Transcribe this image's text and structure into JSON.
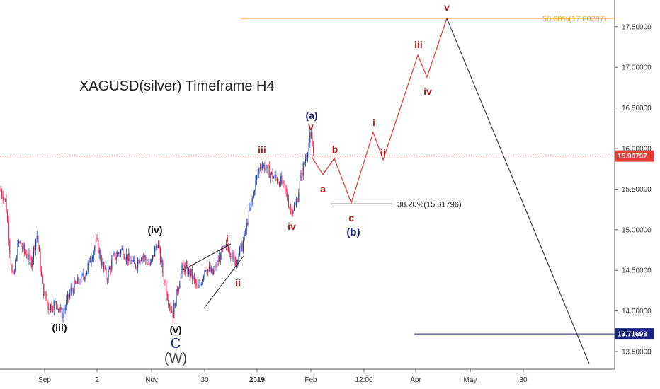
{
  "chart_data": {
    "type": "line",
    "title": "XAGUSD(silver) Timeframe H4",
    "y_ticks": [
      "13.50000",
      "14.00000",
      "14.50000",
      "15.00000",
      "15.50000",
      "16.00000",
      "16.50000",
      "17.00000",
      "17.50000"
    ],
    "x_ticks": [
      {
        "label": "Sep",
        "bold": false
      },
      {
        "label": "2",
        "bold": false
      },
      {
        "label": "Nov",
        "bold": false
      },
      {
        "label": "30",
        "bold": false
      },
      {
        "label": "2019",
        "bold": true
      },
      {
        "label": "Feb",
        "bold": false
      },
      {
        "label": "12:00",
        "bold": false
      },
      {
        "label": "Apr",
        "bold": false
      },
      {
        "label": "May",
        "bold": false
      },
      {
        "label": "30",
        "bold": false
      }
    ],
    "ylim": [
      13.35,
      17.9
    ],
    "current_price": {
      "label": "15.90797",
      "value": 15.90797,
      "color": "#e53935"
    },
    "support_price": {
      "label": "13.71693",
      "value": 13.71693,
      "color": "#1a237e"
    },
    "fib_levels": [
      {
        "label": "50.00%(17.60287)",
        "value": 17.60287,
        "color": "#ff9800"
      },
      {
        "label": "38.20%(15.31796)",
        "value": 15.31796,
        "color": "#222222"
      }
    ],
    "wave_labels": [
      {
        "text": "(iii)",
        "color": "#111111"
      },
      {
        "text": "(iv)",
        "color": "#111111"
      },
      {
        "text": "(v)",
        "color": "#111111"
      },
      {
        "text": "C",
        "color": "#1a237e"
      },
      {
        "text": "(W)",
        "color": "#444444"
      },
      {
        "text": "i",
        "color": "#b71c1c"
      },
      {
        "text": "ii",
        "color": "#b71c1c"
      },
      {
        "text": "iii",
        "color": "#b71c1c"
      },
      {
        "text": "iv",
        "color": "#b71c1c"
      },
      {
        "text": "(a)",
        "color": "#1a237e"
      },
      {
        "text": "v",
        "color": "#b71c1c"
      },
      {
        "text": "a",
        "color": "#b71c1c"
      },
      {
        "text": "b",
        "color": "#b71c1c"
      },
      {
        "text": "c",
        "color": "#b71c1c"
      },
      {
        "text": "(b)",
        "color": "#1a237e"
      },
      {
        "text": "i",
        "color": "#b71c1c"
      },
      {
        "text": "ii",
        "color": "#b71c1c"
      },
      {
        "text": "iii",
        "color": "#b71c1c"
      },
      {
        "text": "iv",
        "color": "#b71c1c"
      },
      {
        "text": "v",
        "color": "#b71c1c"
      }
    ],
    "projection_path": {
      "color": "#e53935",
      "points": [
        15.9,
        15.68,
        15.88,
        15.33,
        16.2,
        15.86,
        17.15,
        16.88,
        17.60287
      ]
    },
    "decline_path": {
      "color": "#222222",
      "points": [
        17.60287,
        13.35
      ]
    },
    "candle_color_up": "#1e40af",
    "candle_color_down": "#e11d48"
  }
}
